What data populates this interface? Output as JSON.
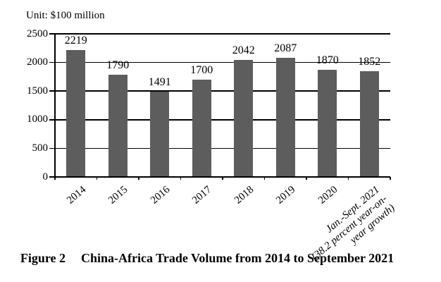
{
  "unit_label": "Unit: $100 million",
  "caption": {
    "figure_label": "Figure 2",
    "title": "China-Africa Trade Volume from 2014 to September 2021"
  },
  "chart_data": {
    "type": "bar",
    "title": "China-Africa Trade Volume from 2014 to September 2021",
    "unit": "Unit: $100 million",
    "categories": [
      "2014",
      "2015",
      "2016",
      "2017",
      "2018",
      "2019",
      "2020",
      "Jan.-Sept. 2021\n(38.2 percent year-on-\nyear growth)"
    ],
    "values": [
      2219,
      1790,
      1491,
      1700,
      2042,
      2087,
      1870,
      1852
    ],
    "data_labels": true,
    "xlabel": "",
    "ylabel": "",
    "ylim": [
      0,
      2500
    ],
    "yticks": [
      0,
      500,
      1000,
      1500,
      2000,
      2500
    ],
    "grid": true,
    "legend": false,
    "bar_color": "#5d5d5d",
    "axis_color": "#000000",
    "background_color": "#ffffff"
  }
}
